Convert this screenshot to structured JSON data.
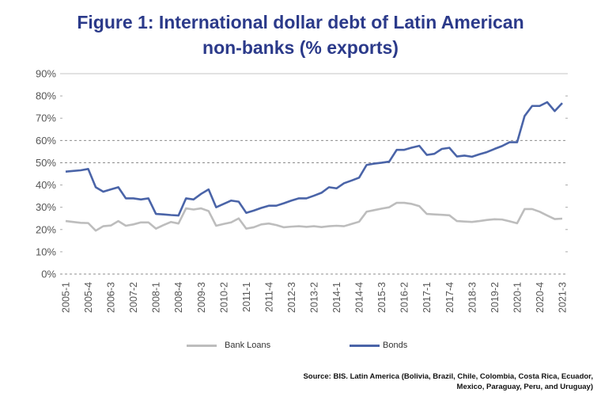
{
  "chart_data": {
    "type": "line",
    "title_line1": "Figure 1: International dollar debt of Latin American",
    "title_line2": "non-banks (% exports)",
    "xlabel": "",
    "ylabel": "",
    "ylim": [
      0,
      90
    ],
    "yticks": [
      "0%",
      "10%",
      "20%",
      "30%",
      "40%",
      "50%",
      "60%",
      "70%",
      "80%",
      "90%"
    ],
    "gridlines": "dashed at 50% and 60%, solid at 90%, dashed baseline",
    "xtick_labels": [
      "2005-1",
      "2005-4",
      "2006-3",
      "2007-2",
      "2008-1",
      "2008-4",
      "2009-3",
      "2010-2",
      "2011-1",
      "2011-4",
      "2012-3",
      "2013-2",
      "2014-1",
      "2014-4",
      "2015-3",
      "2016-2",
      "2017-1",
      "2017-4",
      "2018-3",
      "2019-2",
      "2020-1",
      "2020-4",
      "2021-3"
    ],
    "x_start": "2005-1",
    "x_end": "2021-3",
    "legend_position": "bottom",
    "series": [
      {
        "name": "Bank Loans",
        "color": "#bdbdbd",
        "values": [
          23.8,
          23.4,
          23,
          22.9,
          19.5,
          21.5,
          21.8,
          23.8,
          21.7,
          22.3,
          23.2,
          23.2,
          20.4,
          22,
          23.4,
          22.7,
          29.5,
          29,
          29.5,
          28.3,
          21.7,
          22.5,
          23.2,
          25,
          20.4,
          21,
          22.3,
          22.7,
          22,
          21,
          21.3,
          21.5,
          21.2,
          21.5,
          21.1,
          21.5,
          21.7,
          21.5,
          22.5,
          23.5,
          28,
          28.7,
          29.4,
          30,
          32,
          32,
          31.5,
          30.5,
          27,
          26.8,
          26.6,
          26.4,
          23.8,
          23.6,
          23.4,
          23.8,
          24.3,
          24.6,
          24.5,
          23.7,
          22.8,
          29.2,
          29.2,
          28,
          26.3,
          24.7,
          24.9
        ]
      },
      {
        "name": "Bonds",
        "color": "#4a64a8",
        "values": [
          46,
          46.3,
          46.6,
          47.2,
          39,
          37,
          38,
          39,
          34,
          34,
          33.5,
          34,
          27,
          26.8,
          26.5,
          26.3,
          34,
          33.5,
          36,
          38,
          30,
          31.5,
          33,
          32.5,
          27.5,
          28.5,
          29.7,
          30.7,
          30.7,
          31.8,
          33,
          34,
          34,
          35.2,
          36.5,
          39,
          38.5,
          40.8,
          42,
          43.3,
          49,
          49.6,
          50,
          50.5,
          55.8,
          55.8,
          56.8,
          57.6,
          53.5,
          54,
          56.2,
          56.7,
          52.8,
          53.2,
          52.7,
          53.8,
          54.8,
          56.2,
          57.5,
          59.2,
          59.2,
          71,
          75.5,
          75.5,
          77.2,
          73.2,
          76.8
        ]
      }
    ],
    "source": "Source: BIS. Latin America (Bolivia, Brazil, Chile, Colombia, Costa Rica, Ecuador, Mexico, Paraguay, Peru, and Uruguay)"
  }
}
